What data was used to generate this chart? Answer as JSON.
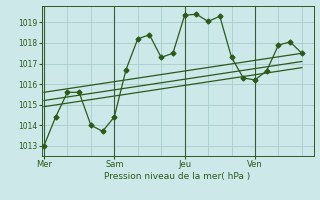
{
  "background_color": "#cce8e8",
  "grid_color": "#aacccc",
  "line_color": "#2d5a1b",
  "title": "Pression niveau de la mer( hPa )",
  "ylim": [
    1012.5,
    1019.8
  ],
  "yticks": [
    1013,
    1014,
    1015,
    1016,
    1017,
    1018,
    1019
  ],
  "xtick_labels": [
    "Mer",
    "Sam",
    "Jeu",
    "Ven"
  ],
  "xtick_positions": [
    0,
    3,
    6,
    9
  ],
  "xlim": [
    -0.1,
    11.5
  ],
  "series": [
    {
      "x": [
        0,
        0.5,
        1.0,
        1.5,
        2.0,
        2.5,
        3.0,
        3.5,
        4.0,
        4.5,
        5.0,
        5.5,
        6.0,
        6.5,
        7.0,
        7.5,
        8.0,
        8.5,
        9.0,
        9.5,
        10.0,
        10.5,
        11.0
      ],
      "y": [
        1013.0,
        1014.4,
        1015.6,
        1015.6,
        1014.0,
        1013.7,
        1014.4,
        1016.7,
        1018.2,
        1018.4,
        1017.3,
        1017.5,
        1019.35,
        1019.4,
        1019.05,
        1019.3,
        1017.3,
        1016.3,
        1016.2,
        1016.65,
        1017.9,
        1018.05,
        1017.5
      ],
      "style": "-",
      "marker": "D",
      "markersize": 2.5
    },
    {
      "x": [
        0,
        11.0
      ],
      "y": [
        1015.6,
        1017.5
      ],
      "style": "-",
      "marker": null
    },
    {
      "x": [
        0,
        11.0
      ],
      "y": [
        1015.2,
        1017.1
      ],
      "style": "-",
      "marker": null
    },
    {
      "x": [
        0,
        11.0
      ],
      "y": [
        1014.9,
        1016.8
      ],
      "style": "-",
      "marker": null
    }
  ],
  "major_vlines_x": [
    0,
    3,
    6,
    9
  ],
  "minor_vlines_x": [
    1,
    2,
    4,
    5,
    7,
    8,
    10,
    11
  ],
  "minor_hlines_y": [
    1013,
    1014,
    1015,
    1016,
    1017,
    1018,
    1019
  ]
}
